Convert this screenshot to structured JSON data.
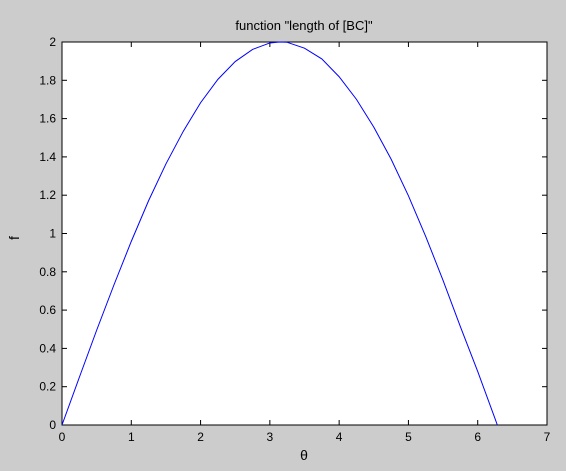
{
  "chart_data": {
    "type": "line",
    "title": "function \"length of [BC]\"",
    "xlabel": "θ",
    "ylabel": "f",
    "xlim": [
      0,
      7
    ],
    "ylim": [
      0,
      2
    ],
    "x_ticks": [
      0,
      1,
      2,
      3,
      4,
      5,
      6,
      7
    ],
    "y_ticks": [
      0,
      0.2,
      0.4,
      0.6,
      0.8,
      1,
      1.2,
      1.4,
      1.6,
      1.8,
      2
    ],
    "x_tick_labels": [
      "0",
      "1",
      "2",
      "3",
      "4",
      "5",
      "6",
      "7"
    ],
    "y_tick_labels": [
      "0",
      "0.2",
      "0.4",
      "0.6",
      "0.8",
      "1",
      "1.2",
      "1.4",
      "1.6",
      "1.8",
      "2"
    ],
    "grid": false,
    "series": [
      {
        "color": "#0000ff",
        "x": [
          0,
          0.25,
          0.5,
          0.75,
          1,
          1.25,
          1.5,
          1.75,
          2,
          2.25,
          2.5,
          2.75,
          3,
          3.1416,
          3.25,
          3.5,
          3.75,
          4,
          4.25,
          4.5,
          4.75,
          5,
          5.25,
          5.5,
          5.75,
          6,
          6.25,
          6.2832
        ],
        "y": [
          0,
          0.2487,
          0.4948,
          0.7317,
          0.9589,
          1.1717,
          1.3633,
          1.5336,
          1.6829,
          1.8048,
          1.898,
          1.9611,
          1.995,
          2.0,
          1.9984,
          1.9677,
          1.9118,
          1.8186,
          1.7005,
          1.5557,
          1.3883,
          1.1969,
          0.9843,
          0.7552,
          0.5136,
          0.2794,
          0.0332,
          0
        ]
      }
    ]
  }
}
